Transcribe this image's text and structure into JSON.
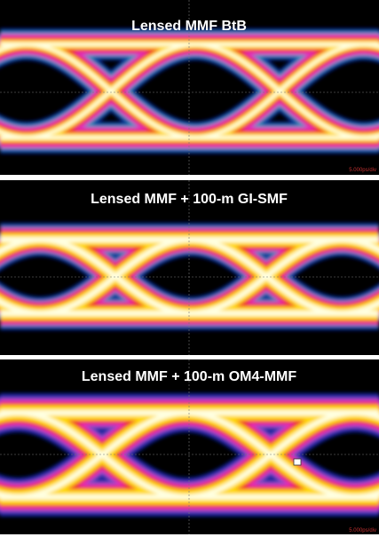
{
  "panels": [
    {
      "title": "Lensed MMF BtB",
      "scale": "5.000ps/div"
    },
    {
      "title": "Lensed MMF + 100-m GI-SMF"
    },
    {
      "title": "Lensed MMF + 100-m OM4-MMF",
      "scale": "5.000ps/div"
    }
  ]
}
